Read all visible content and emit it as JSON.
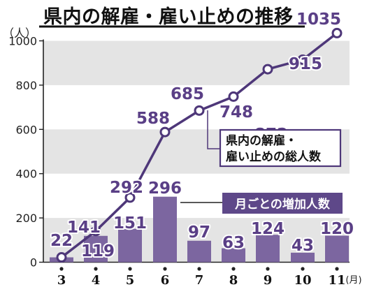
{
  "chart_data": {
    "type": "bar+line",
    "title": "県内の解雇・雇い止めの推移",
    "y_unit": "（人）",
    "x_unit": "(月)",
    "categories": [
      "3",
      "4",
      "5",
      "6",
      "7",
      "8",
      "9",
      "10",
      "11"
    ],
    "ylim": [
      0,
      1100
    ],
    "yticks": [
      0,
      200,
      400,
      600,
      800,
      1000
    ],
    "series": [
      {
        "name": "県内の解雇・雇い止めの総人数",
        "type": "line",
        "values": [
          22,
          141,
          292,
          588,
          685,
          748,
          872,
          915,
          1035
        ]
      },
      {
        "name": "月ごとの増加人数",
        "type": "bar",
        "values": [
          22,
          119,
          151,
          296,
          97,
          63,
          124,
          43,
          120
        ]
      }
    ],
    "legend_line_text": [
      "県内の解雇・",
      "雇い止めの総人数"
    ],
    "legend_bar_text": "月ごとの増加人数",
    "colors": {
      "line": "#4e3779",
      "bar": "#7c66a0",
      "label": "#5a3f86",
      "band": "#e4e4e4",
      "legend_bg": "#5e4889"
    }
  }
}
